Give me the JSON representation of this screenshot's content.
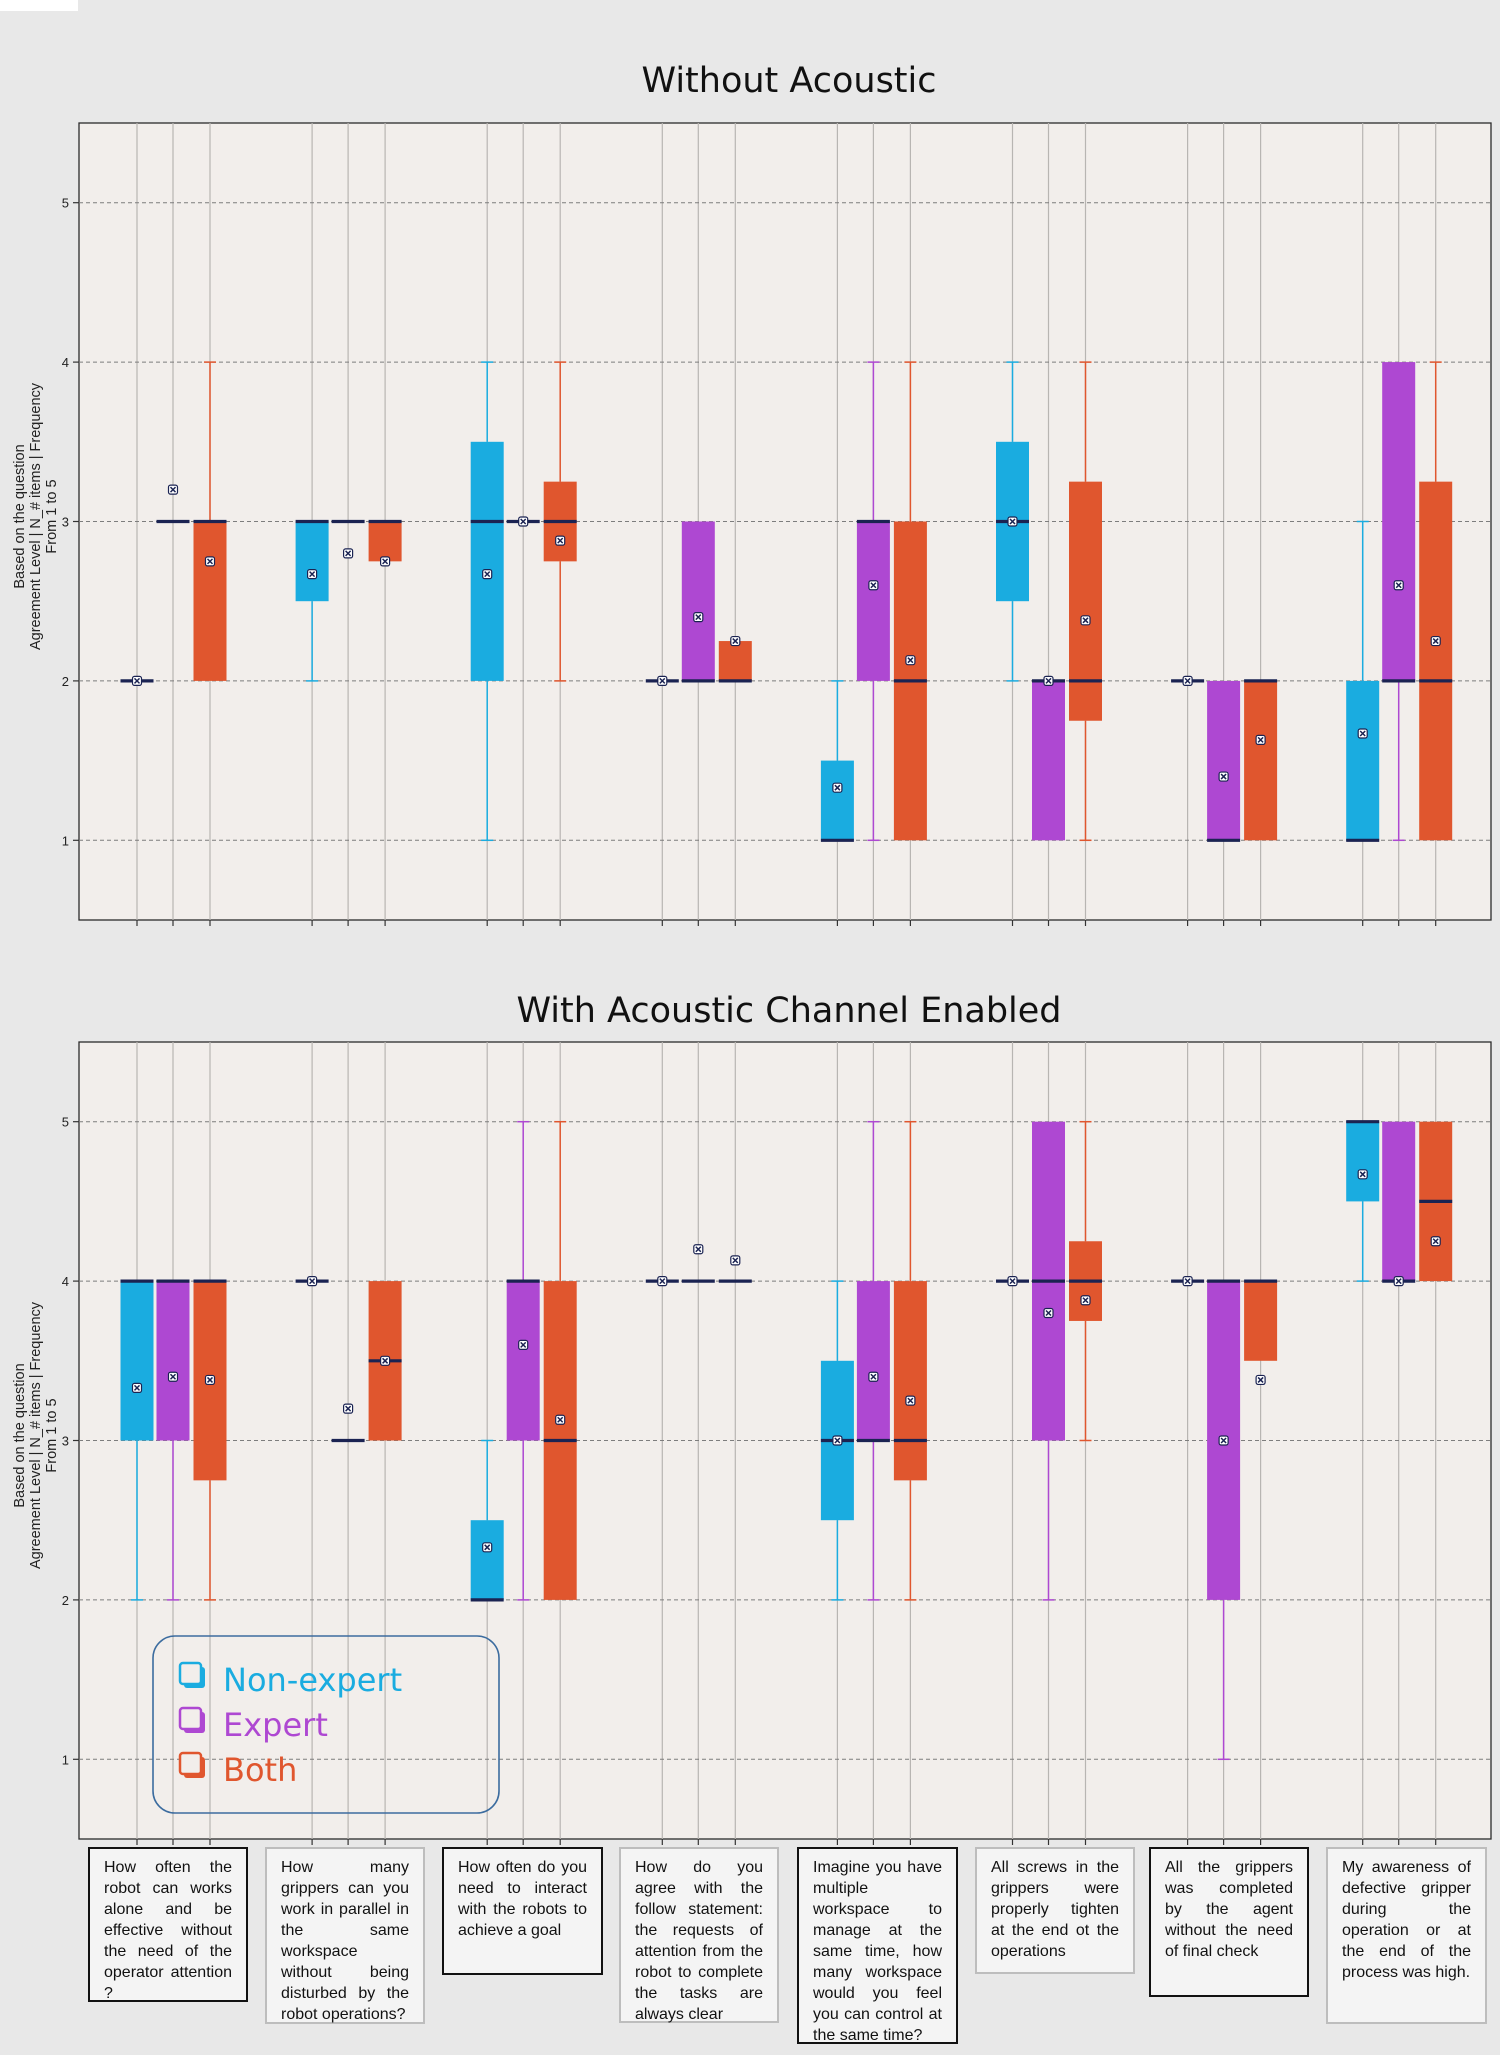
{
  "legend": {
    "items": [
      {
        "label": "Non-expert",
        "color": "#1aace0"
      },
      {
        "label": "Expert",
        "color": "#ae48d2"
      },
      {
        "label": "Both",
        "color": "#e0562e"
      }
    ]
  },
  "questions": [
    {
      "text": "How often the robot can works alone and be effective without the need of the operator attention ?",
      "style": "dark"
    },
    {
      "text": "How many grippers can you work in parallel in the same workspace without being disturbed by the robot operations?",
      "style": "light"
    },
    {
      "text": "How often do you need to interact with the robots to achieve a goal",
      "style": "dark"
    },
    {
      "text": "How do you agree with the follow statement: the requests of attention from the robot to complete the tasks are always clear",
      "style": "light"
    },
    {
      "text": "Imagine you have multiple workspace to manage at the same time, how many workspace would you feel you can control at the same time?",
      "style": "dark"
    },
    {
      "text": "All screws in the grippers were properly tighten at the end ot the operations",
      "style": "light"
    },
    {
      "text": "All the grippers was completed by the agent without the need of final check",
      "style": "dark"
    },
    {
      "text": "My awareness of defective gripper during the operation or at the end of the process was high.",
      "style": "light"
    }
  ],
  "chart_data": [
    {
      "type": "box",
      "title": "Without Acoustic",
      "ylabel": [
        "Based on the question",
        "Agreement Level | N_# items | Frequency",
        "From 1 to 5"
      ],
      "ylim": [
        0.5,
        5.5
      ],
      "yticks": [
        1,
        2,
        3,
        4,
        5
      ],
      "grid": true,
      "series_names": [
        "Non-expert",
        "Expert",
        "Both"
      ],
      "groups": [
        {
          "boxes": [
            {
              "min": 2,
              "q1": 2,
              "median": 2,
              "q3": 2,
              "max": 2,
              "mean": 2
            },
            {
              "min": 3,
              "q1": 3,
              "median": 3,
              "q3": 3,
              "max": 3,
              "mean": 3.2
            },
            {
              "min": 2,
              "q1": 2,
              "median": 3,
              "q3": 3,
              "max": 4,
              "mean": 2.75
            }
          ]
        },
        {
          "boxes": [
            {
              "min": 2,
              "q1": 2.5,
              "median": 3,
              "q3": 3,
              "max": 3,
              "mean": 2.67
            },
            {
              "min": 3,
              "q1": 3,
              "median": 3,
              "q3": 3,
              "max": 3,
              "mean": 2.8
            },
            {
              "min": 2.75,
              "q1": 2.75,
              "median": 3,
              "q3": 3,
              "max": 3,
              "mean": 2.75
            }
          ]
        },
        {
          "boxes": [
            {
              "min": 1,
              "q1": 2,
              "median": 3,
              "q3": 3.5,
              "max": 4,
              "mean": 2.67
            },
            {
              "min": 3,
              "q1": 3,
              "median": 3,
              "q3": 3,
              "max": 3,
              "mean": 3
            },
            {
              "min": 2,
              "q1": 2.75,
              "median": 3,
              "q3": 3.25,
              "max": 4,
              "mean": 2.88
            }
          ]
        },
        {
          "boxes": [
            {
              "min": 2,
              "q1": 2,
              "median": 2,
              "q3": 2,
              "max": 2,
              "mean": 2
            },
            {
              "min": 2,
              "q1": 2,
              "median": 2,
              "q3": 3,
              "max": 3,
              "mean": 2.4
            },
            {
              "min": 2,
              "q1": 2,
              "median": 2,
              "q3": 2.25,
              "max": 2.25,
              "mean": 2.25
            }
          ]
        },
        {
          "boxes": [
            {
              "min": 1,
              "q1": 1,
              "median": 1,
              "q3": 1.5,
              "max": 2,
              "mean": 1.33
            },
            {
              "min": 1,
              "q1": 2,
              "median": 3,
              "q3": 3,
              "max": 4,
              "mean": 2.6
            },
            {
              "min": 1,
              "q1": 1,
              "median": 2,
              "q3": 3,
              "max": 4,
              "mean": 2.13
            }
          ]
        },
        {
          "boxes": [
            {
              "min": 2,
              "q1": 2.5,
              "median": 3,
              "q3": 3.5,
              "max": 4,
              "mean": 3
            },
            {
              "min": 1,
              "q1": 1,
              "median": 2,
              "q3": 2,
              "max": 2,
              "mean": 2
            },
            {
              "min": 1,
              "q1": 1.75,
              "median": 2,
              "q3": 3.25,
              "max": 4,
              "mean": 2.38
            }
          ]
        },
        {
          "boxes": [
            {
              "min": 2,
              "q1": 2,
              "median": 2,
              "q3": 2,
              "max": 2,
              "mean": 2
            },
            {
              "min": 1,
              "q1": 1,
              "median": 1,
              "q3": 2,
              "max": 2,
              "mean": 1.4
            },
            {
              "min": 1,
              "q1": 1,
              "median": 2,
              "q3": 2,
              "max": 2,
              "mean": 1.63
            }
          ]
        },
        {
          "boxes": [
            {
              "min": 1,
              "q1": 1,
              "median": 1,
              "q3": 2,
              "max": 3,
              "mean": 1.67
            },
            {
              "min": 1,
              "q1": 2,
              "median": 2,
              "q3": 4,
              "max": 4,
              "mean": 2.6
            },
            {
              "min": 1,
              "q1": 1,
              "median": 2,
              "q3": 3.25,
              "max": 4,
              "mean": 2.25
            }
          ]
        }
      ]
    },
    {
      "type": "box",
      "title": "With Acoustic Channel Enabled",
      "ylabel": [
        "Based on the question",
        "Agreement Level | N_# items | Frequency",
        "From 1 to 5"
      ],
      "ylim": [
        0.5,
        5.5
      ],
      "yticks": [
        1,
        2,
        3,
        4,
        5
      ],
      "grid": true,
      "legend_position": "lower-left",
      "series_names": [
        "Non-expert",
        "Expert",
        "Both"
      ],
      "groups": [
        {
          "boxes": [
            {
              "min": 2,
              "q1": 3,
              "median": 4,
              "q3": 4,
              "max": 4,
              "mean": 3.33
            },
            {
              "min": 2,
              "q1": 3,
              "median": 4,
              "q3": 4,
              "max": 4,
              "mean": 3.4
            },
            {
              "min": 2,
              "q1": 2.75,
              "median": 4,
              "q3": 4,
              "max": 4,
              "mean": 3.38
            }
          ]
        },
        {
          "boxes": [
            {
              "min": 4,
              "q1": 4,
              "median": 4,
              "q3": 4,
              "max": 4,
              "mean": 4
            },
            {
              "min": 3,
              "q1": 3,
              "median": 3,
              "q3": 3,
              "max": 3,
              "mean": 3.2
            },
            {
              "min": 3,
              "q1": 3,
              "median": 3.5,
              "q3": 4,
              "max": 4,
              "mean": 3.5
            }
          ]
        },
        {
          "boxes": [
            {
              "min": 2,
              "q1": 2,
              "median": 2,
              "q3": 2.5,
              "max": 3,
              "mean": 2.33
            },
            {
              "min": 2,
              "q1": 3,
              "median": 4,
              "q3": 4,
              "max": 5,
              "mean": 3.6
            },
            {
              "min": 2,
              "q1": 2,
              "median": 3,
              "q3": 4,
              "max": 5,
              "mean": 3.13
            }
          ]
        },
        {
          "boxes": [
            {
              "min": 4,
              "q1": 4,
              "median": 4,
              "q3": 4,
              "max": 4,
              "mean": 4
            },
            {
              "min": 4,
              "q1": 4,
              "median": 4,
              "q3": 4,
              "max": 4,
              "mean": 4.2
            },
            {
              "min": 4,
              "q1": 4,
              "median": 4,
              "q3": 4,
              "max": 4,
              "mean": 4.13
            }
          ]
        },
        {
          "boxes": [
            {
              "min": 2,
              "q1": 2.5,
              "median": 3,
              "q3": 3.5,
              "max": 4,
              "mean": 3
            },
            {
              "min": 2,
              "q1": 3,
              "median": 3,
              "q3": 4,
              "max": 5,
              "mean": 3.4
            },
            {
              "min": 2,
              "q1": 2.75,
              "median": 3,
              "q3": 4,
              "max": 5,
              "mean": 3.25
            }
          ]
        },
        {
          "boxes": [
            {
              "min": 4,
              "q1": 4,
              "median": 4,
              "q3": 4,
              "max": 4,
              "mean": 4
            },
            {
              "min": 2,
              "q1": 3,
              "median": 4,
              "q3": 5,
              "max": 5,
              "mean": 3.8
            },
            {
              "min": 3,
              "q1": 3.75,
              "median": 4,
              "q3": 4.25,
              "max": 5,
              "mean": 3.88
            }
          ]
        },
        {
          "boxes": [
            {
              "min": 4,
              "q1": 4,
              "median": 4,
              "q3": 4,
              "max": 4,
              "mean": 4
            },
            {
              "min": 1,
              "q1": 2,
              "median": 4,
              "q3": 4,
              "max": 4,
              "mean": 3
            },
            {
              "min": 3.5,
              "q1": 3.5,
              "median": 4,
              "q3": 4,
              "max": 4,
              "mean": 3.38
            }
          ]
        },
        {
          "boxes": [
            {
              "min": 4,
              "q1": 4.5,
              "median": 5,
              "q3": 5,
              "max": 5,
              "mean": 4.67
            },
            {
              "min": 4,
              "q1": 4,
              "median": 4,
              "q3": 5,
              "max": 5,
              "mean": 4
            },
            {
              "min": 4,
              "q1": 4,
              "median": 4.5,
              "q3": 5,
              "max": 5,
              "mean": 4.25
            }
          ]
        }
      ]
    }
  ]
}
